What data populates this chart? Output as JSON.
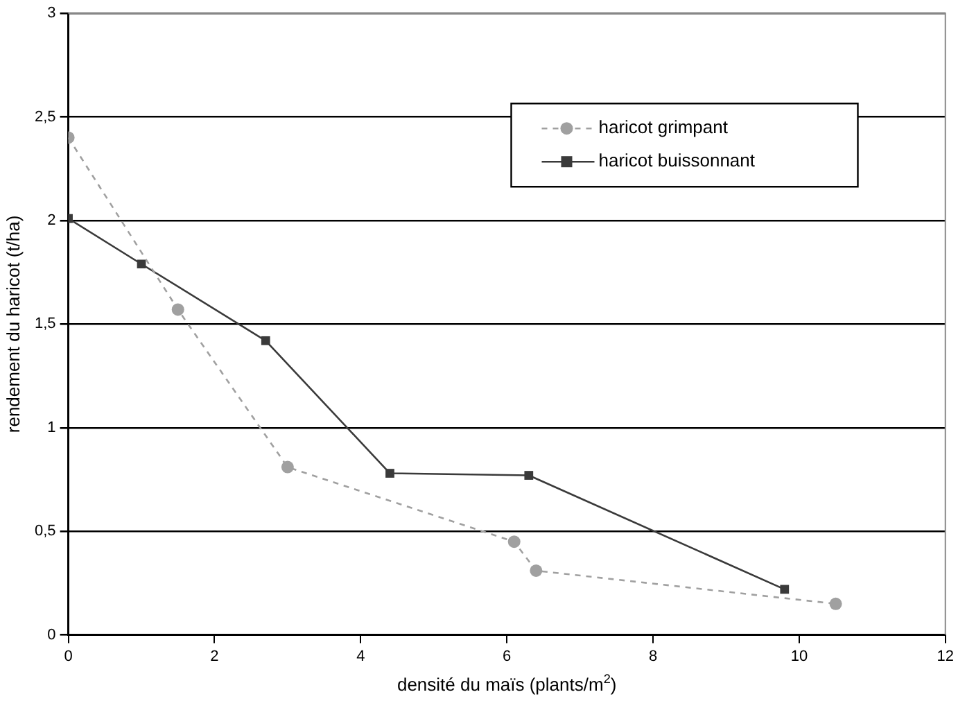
{
  "chart_data": {
    "type": "line",
    "xlabel": "densité du maïs (plants/m$^{2}$)",
    "ylabel": "rendement du haricot (t/ha)",
    "series": [
      {
        "name": "haricot grimpant",
        "color": "#a0a0a0",
        "x": [
          0,
          1.5,
          3,
          6.1,
          6.4,
          10.5
        ],
        "values": [
          2.4,
          1.57,
          0.81,
          0.45,
          0.31,
          0.15
        ],
        "marker": "circle",
        "line_style": "dashed"
      },
      {
        "name": "haricot buissonnant",
        "color": "#3a3a3a",
        "x": [
          0,
          1,
          2.7,
          4.4,
          6.3,
          9.8
        ],
        "values": [
          2.01,
          1.79,
          1.42,
          0.78,
          0.77,
          0.22
        ],
        "marker": "square",
        "line_style": "solid"
      }
    ],
    "xlim": [
      0,
      12
    ],
    "xticks": [
      0,
      2,
      4,
      6,
      8,
      10,
      12
    ],
    "ylim": [
      0,
      3
    ],
    "yticks": [
      {
        "value": 0,
        "label": "0"
      },
      {
        "value": 0.5,
        "label": "0,5"
      },
      {
        "value": 1,
        "label": "1"
      },
      {
        "value": 1.5,
        "label": "1,5"
      },
      {
        "value": 2,
        "label": "2"
      },
      {
        "value": 2.5,
        "label": "2,5"
      },
      {
        "value": 3,
        "label": "3"
      }
    ],
    "grid": "y",
    "legend": "top right"
  }
}
